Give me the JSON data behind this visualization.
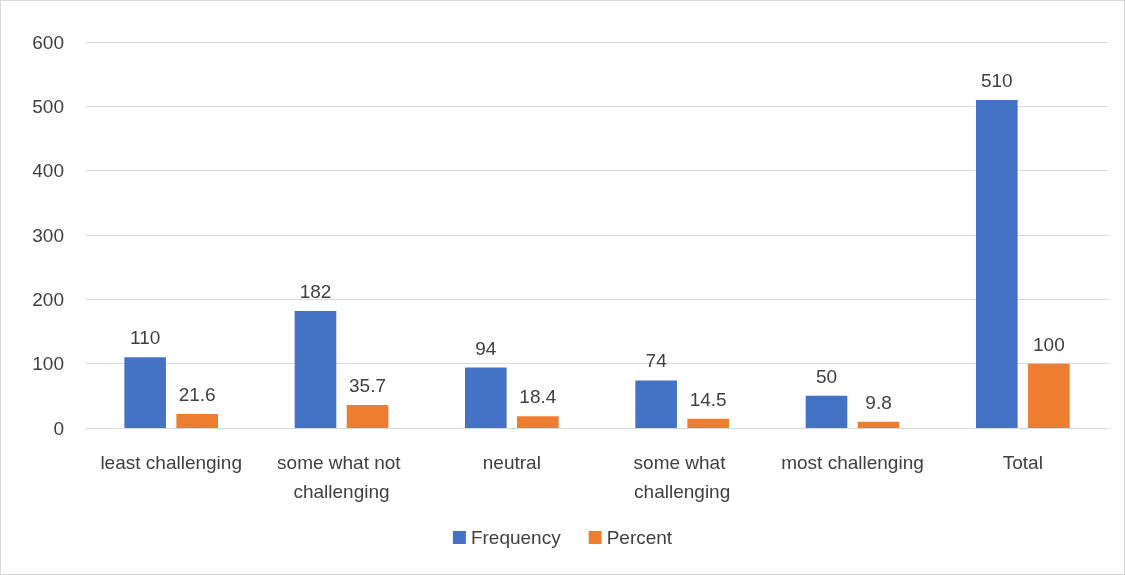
{
  "chart_data": {
    "type": "bar",
    "categories": [
      "least challenging",
      "some what not challenging",
      "neutral",
      "some what challenging",
      "most challenging",
      "Total"
    ],
    "series": [
      {
        "name": "Frequency",
        "color": "#4472c4",
        "values": [
          110,
          182,
          94,
          74,
          50,
          510
        ]
      },
      {
        "name": "Percent",
        "color": "#ed7d31",
        "values": [
          21.6,
          35.7,
          18.4,
          14.5,
          9.8,
          100
        ]
      }
    ],
    "ylim": [
      0,
      600
    ],
    "yticks": [
      0,
      100,
      200,
      300,
      400,
      500,
      600
    ],
    "grid": "y",
    "legend": "bottom",
    "data_labels": true
  }
}
